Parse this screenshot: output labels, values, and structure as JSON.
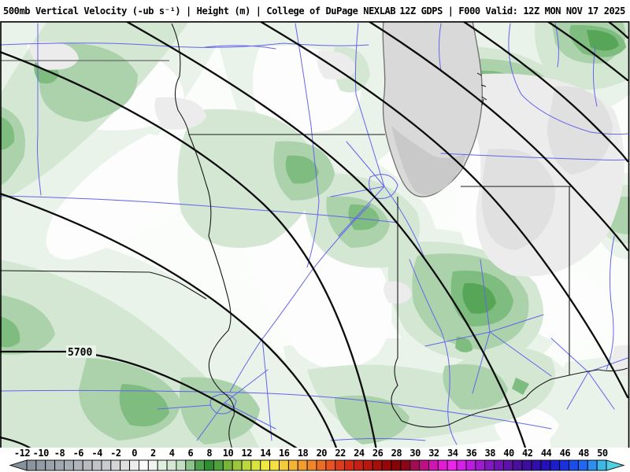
{
  "header": {
    "left_title": "500mb Vertical Velocity (-ub s⁻¹) | Height (m) | College of DuPage NEXLAB",
    "right_title": "12Z GDPS | F000 Valid: 12Z MON NOV 17 2025",
    "model": "GDPS",
    "cycle": "12Z",
    "forecast_hour": "F000",
    "valid_time": "12Z MON NOV 17 2025",
    "parameter": "500mb Vertical Velocity (-ub s⁻¹)",
    "overlay": "Height (m)",
    "source": "College of DuPage NEXLAB"
  },
  "map": {
    "height_contour_label": "5700",
    "contour_color": "#0c0c0c",
    "river_road_color": "#6464ec",
    "lake_fill_color": "#d9d9d9",
    "positive_fill_colors": [
      "#eef5ee",
      "#e0efe0",
      "#d2e8d2",
      "#c3e0c3",
      "#8cc48c",
      "#4da04d"
    ],
    "negative_fill_colors": [
      "#ececec",
      "#e0e0e0",
      "#d2d2d2"
    ]
  },
  "colorbar": {
    "unit": "-ub s⁻¹",
    "min": -12,
    "max": 50,
    "tick_step": 2,
    "tick_labels": [
      "-12",
      "-10",
      "-8",
      "-6",
      "-4",
      "-2",
      "0",
      "2",
      "4",
      "6",
      "8",
      "10",
      "12",
      "14",
      "16",
      "18",
      "20",
      "22",
      "24",
      "26",
      "28",
      "30",
      "32",
      "34",
      "36",
      "38",
      "40",
      "42",
      "44",
      "46",
      "48",
      "50"
    ],
    "segment_colors": [
      "#8b959d",
      "#929ba3",
      "#99a2a9",
      "#a0a8ae",
      "#a7aeb4",
      "#afb5ba",
      "#b7bcc1",
      "#c0c4c8",
      "#c9cccf",
      "#d3d5d7",
      "#dedfe1",
      "#eceded",
      "#fcfdfc",
      "#eef5ee",
      "#e0efe0",
      "#d2e8d2",
      "#c3e0c3",
      "#8cc48c",
      "#4da04d",
      "#2f8f2f",
      "#4f9f3f",
      "#79b43a",
      "#9cc73c",
      "#bdd73e",
      "#d9e23e",
      "#eeea40",
      "#f4e03e",
      "#f6cb39",
      "#f6b434",
      "#f49d2f",
      "#f0862a",
      "#ec6d25",
      "#e65420",
      "#de3b1b",
      "#d32a16",
      "#c62012",
      "#b7170e",
      "#a60f0a",
      "#950808",
      "#860408",
      "#8b0616",
      "#a30b52",
      "#bc1086",
      "#d215b2",
      "#e41bd4",
      "#f022ee",
      "#d81fe8",
      "#bd1ce0",
      "#a019d0",
      "#8517c2",
      "#6f14b4",
      "#5c11a8",
      "#4b0f9e",
      "#3d0e9e",
      "#300ea8",
      "#2412b8",
      "#1d1ecb",
      "#1a32dd",
      "#1c4cea",
      "#2068f2",
      "#2e8ef0",
      "#3fb6e8"
    ],
    "left_arrow_color": "#86919a",
    "right_arrow_color": "#4ed0e2"
  }
}
